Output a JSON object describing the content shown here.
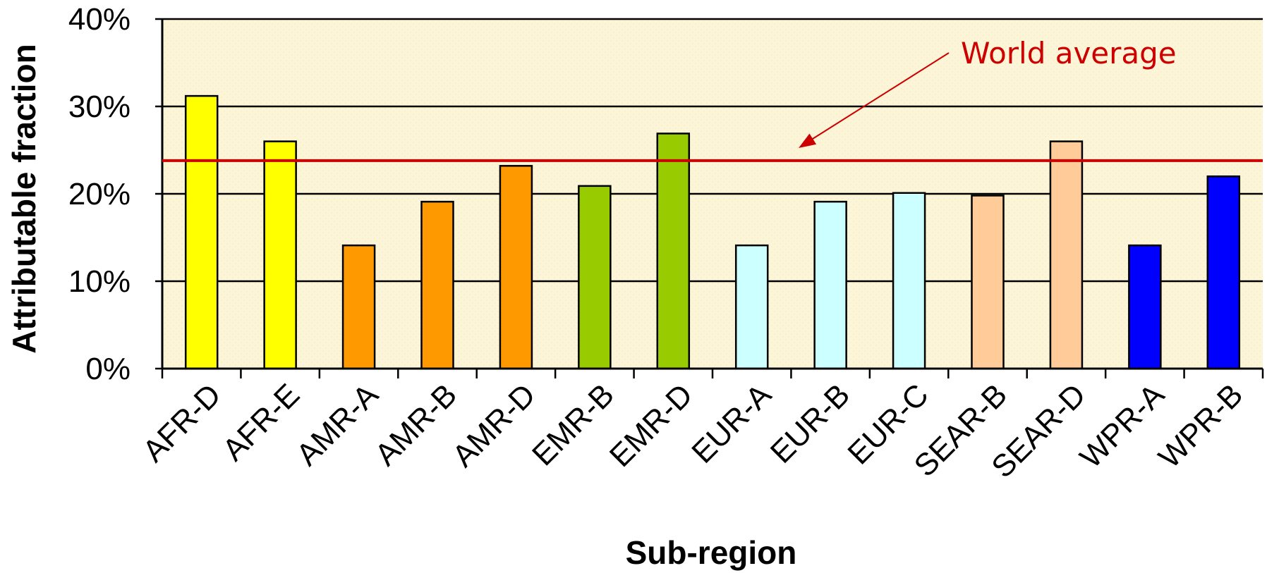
{
  "chart_data": {
    "type": "bar",
    "categories": [
      "AFR-D",
      "AFR-E",
      "AMR-A",
      "AMR-B",
      "AMR-D",
      "EMR-B",
      "EMR-D",
      "EUR-A",
      "EUR-B",
      "EUR-C",
      "SEAR-B",
      "SEAR-D",
      "WPR-A",
      "WPR-B"
    ],
    "values": [
      31.2,
      26.0,
      14.1,
      19.1,
      23.2,
      20.9,
      26.9,
      14.1,
      19.1,
      20.1,
      19.8,
      26.0,
      14.1,
      22.0
    ],
    "bar_colors": [
      "#ffff00",
      "#ffff00",
      "#ff9900",
      "#ff9900",
      "#ff9900",
      "#99cc00",
      "#99cc00",
      "#ccffff",
      "#ccffff",
      "#ccffff",
      "#ffcc99",
      "#ffcc99",
      "#0000ff",
      "#0000ff"
    ],
    "title": "",
    "xlabel": "Sub-region",
    "ylabel": "Attributable fraction",
    "ylim": [
      0,
      40
    ],
    "yticks": [
      "0%",
      "10%",
      "20%",
      "30%",
      "40%"
    ],
    "grid": true,
    "reference_line": {
      "label": "World average",
      "value": 23.8,
      "color": "#cc0000"
    }
  }
}
